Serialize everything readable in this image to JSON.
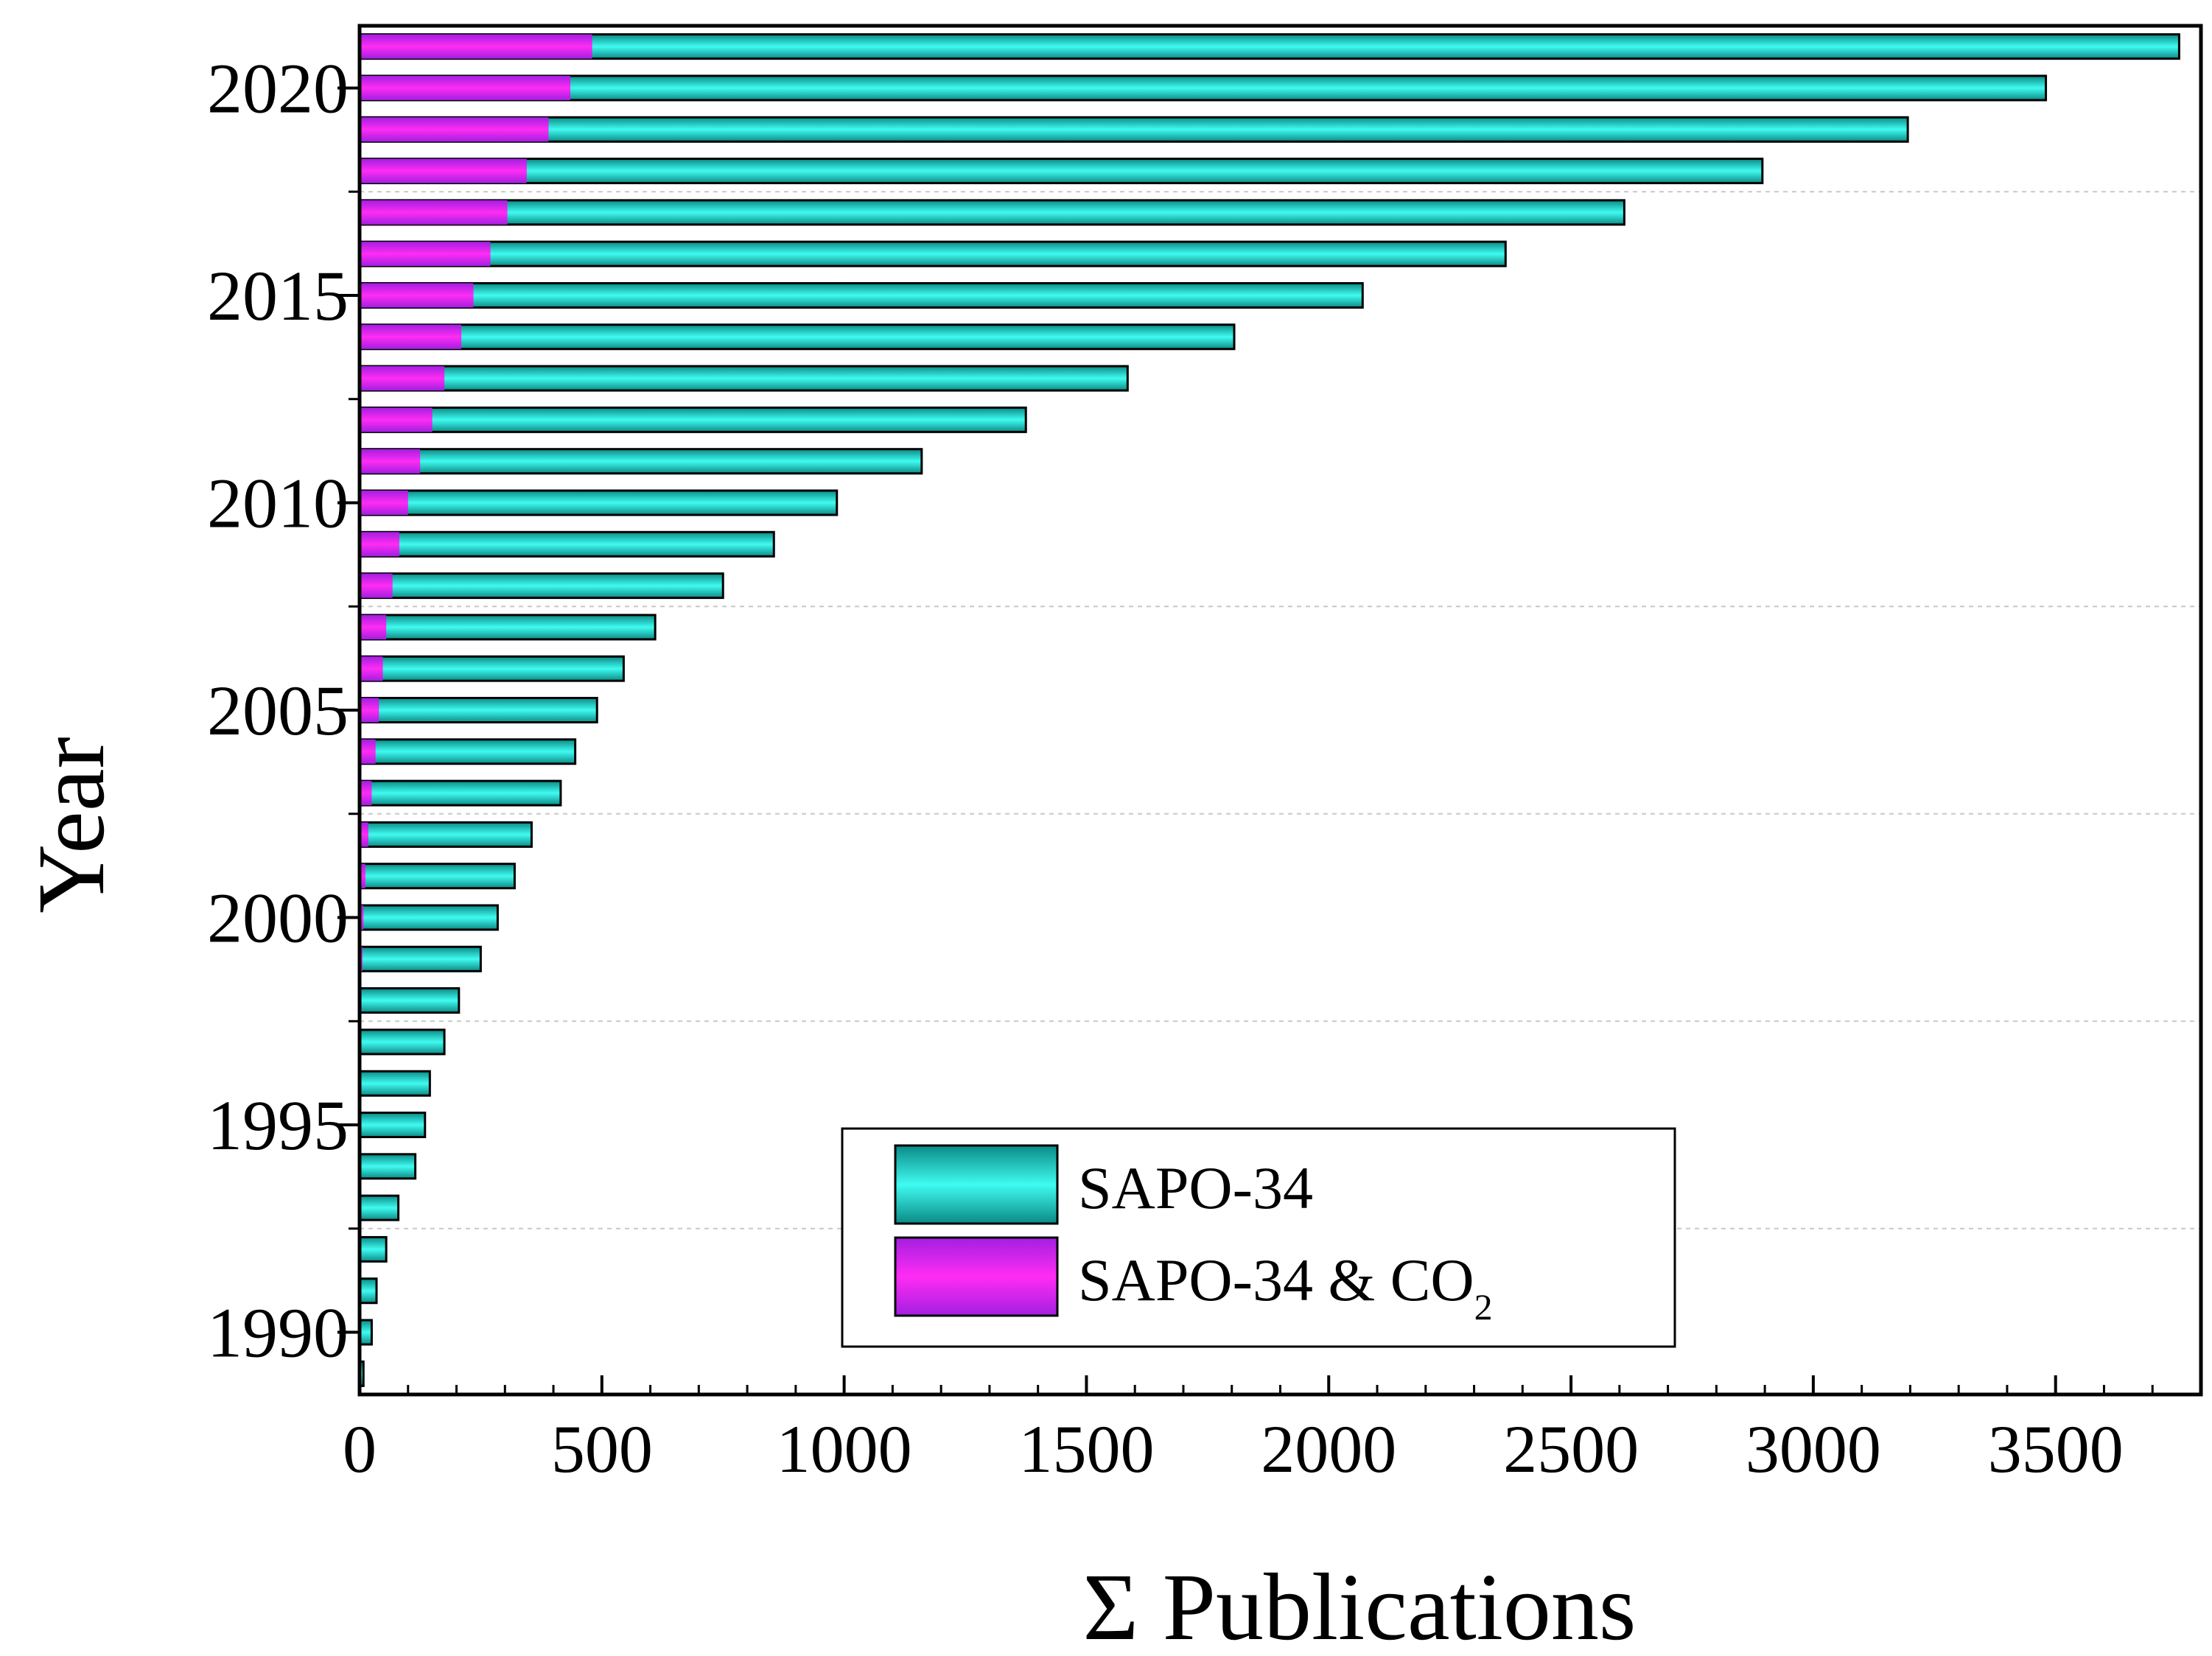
{
  "chart_data": {
    "type": "bar",
    "orientation": "horizontal",
    "title": "",
    "xlabel": "Σ Publications",
    "ylabel": "Year",
    "xlim": [
      0,
      3800
    ],
    "ylim": [
      1988.5,
      2021.5
    ],
    "x_ticks": [
      0,
      500,
      1000,
      1500,
      2000,
      2500,
      3000,
      3500
    ],
    "y_ticks": [
      1990,
      1995,
      2000,
      2005,
      2010,
      2015,
      2020
    ],
    "grid": "dotted horizontal lines at 1992.5, 1997.5, 2002.5, 2007.5, 2017.5",
    "legend_position": "bottom-right",
    "categories": [
      1989,
      1990,
      1991,
      1992,
      1993,
      1994,
      1995,
      1996,
      1997,
      1998,
      1999,
      2000,
      2001,
      2002,
      2003,
      2004,
      2005,
      2006,
      2007,
      2008,
      2009,
      2010,
      2011,
      2012,
      2013,
      2014,
      2015,
      2016,
      2017,
      2018,
      2019,
      2020,
      2021
    ],
    "series": [
      {
        "name": "SAPO-34",
        "color": "#22c4bc",
        "values": [
          8,
          25,
          35,
          55,
          80,
          115,
          135,
          145,
          175,
          205,
          250,
          285,
          320,
          355,
          415,
          445,
          490,
          545,
          610,
          750,
          855,
          985,
          1160,
          1375,
          1585,
          1805,
          2070,
          2365,
          2610,
          2895,
          3195,
          3480,
          3755
        ]
      },
      {
        "name": "SAPO-34 & CO",
        "name_subscript": "2",
        "color": "#d81ff0",
        "values": [
          0,
          0,
          0,
          0,
          0,
          0,
          0,
          0,
          2,
          4,
          6,
          8,
          12,
          18,
          25,
          33,
          40,
          48,
          55,
          68,
          82,
          100,
          125,
          150,
          175,
          210,
          235,
          270,
          305,
          345,
          390,
          435,
          480
        ]
      }
    ]
  }
}
